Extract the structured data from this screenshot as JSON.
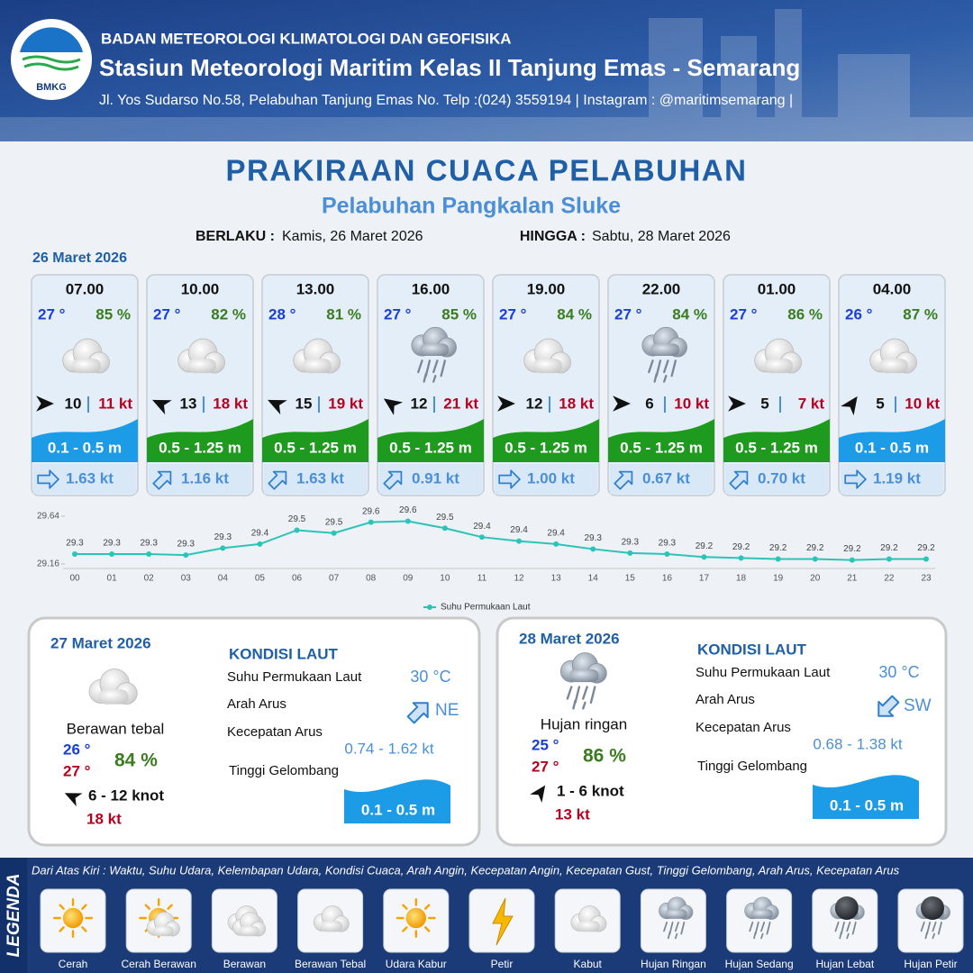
{
  "header": {
    "logo": "BMKG",
    "agency": "BADAN METEOROLOGI KLIMATOLOGI DAN GEOFISIKA",
    "station": "Stasiun Meteorologi Maritim Kelas II Tanjung Emas - Semarang",
    "address": "Jl. Yos Sudarso No.58, Pelabuhan Tanjung Emas No. Telp :(024) 3559194 | Instagram : @maritimsemarang |"
  },
  "title": "PRAKIRAAN CUACA PELABUHAN",
  "subtitle": "Pelabuhan Pangkalan Sluke",
  "validity": {
    "from_label": "BERLAKU :",
    "from": "Kamis, 26 Maret 2026",
    "to_label": "HINGGA :",
    "to": "Sabtu, 28 Maret 2026"
  },
  "today": {
    "date": "26 Maret 2026",
    "slots": [
      {
        "time": "07.00",
        "temp": "27 °",
        "humidity": "85 %",
        "wind": "10",
        "gust": "11 kt",
        "wave": "0.1 - 0.5 m",
        "wave_color": "#1c9be6",
        "current": "1.63 kt"
      },
      {
        "time": "10.00",
        "temp": "27 °",
        "humidity": "82 %",
        "wind": "13",
        "gust": "18 kt",
        "wave": "0.5 - 1.25 m",
        "wave_color": "#1e9a1e",
        "current": "1.16 kt"
      },
      {
        "time": "13.00",
        "temp": "28 °",
        "humidity": "81 %",
        "wind": "15",
        "gust": "19 kt",
        "wave": "0.5 - 1.25 m",
        "wave_color": "#1e9a1e",
        "current": "1.63 kt"
      },
      {
        "time": "16.00",
        "temp": "27 °",
        "humidity": "85 %",
        "wind": "12",
        "gust": "21 kt",
        "wave": "0.5 - 1.25 m",
        "wave_color": "#1e9a1e",
        "current": "0.91 kt"
      },
      {
        "time": "19.00",
        "temp": "27 °",
        "humidity": "84 %",
        "wind": "12",
        "gust": "18 kt",
        "wave": "0.5 - 1.25 m",
        "wave_color": "#1e9a1e",
        "current": "1.00 kt"
      },
      {
        "time": "22.00",
        "temp": "27 °",
        "humidity": "84 %",
        "wind": "6",
        "gust": "10 kt",
        "wave": "0.5 - 1.25 m",
        "wave_color": "#1e9a1e",
        "current": "0.67 kt"
      },
      {
        "time": "01.00",
        "temp": "27 °",
        "humidity": "86 %",
        "wind": "5",
        "gust": "7 kt",
        "wave": "0.5 - 1.25 m",
        "wave_color": "#1e9a1e",
        "current": "0.70 kt"
      },
      {
        "time": "04.00",
        "temp": "26 °",
        "humidity": "87 %",
        "wind": "5",
        "gust": "10 kt",
        "wave": "0.1 - 0.5 m",
        "wave_color": "#1c9be6",
        "current": "1.19 kt"
      }
    ]
  },
  "chart_data": {
    "type": "line",
    "categories": [
      "00",
      "01",
      "02",
      "03",
      "04",
      "05",
      "06",
      "07",
      "08",
      "09",
      "10",
      "11",
      "12",
      "13",
      "14",
      "15",
      "16",
      "17",
      "18",
      "19",
      "20",
      "21",
      "22",
      "23"
    ],
    "series": [
      {
        "name": "Suhu Permukaan Laut",
        "color": "#2bc4b8",
        "values": [
          29.26,
          29.26,
          29.26,
          29.25,
          29.32,
          29.36,
          29.5,
          29.47,
          29.58,
          29.59,
          29.52,
          29.43,
          29.39,
          29.36,
          29.31,
          29.27,
          29.26,
          29.23,
          29.22,
          29.21,
          29.21,
          29.2,
          29.21,
          29.21
        ],
        "value_labels": [
          "29.3",
          "29.3",
          "29.3",
          "29.3",
          "29.3",
          "29.4",
          "29.5",
          "29.5",
          "29.6",
          "29.6",
          "29.5",
          "29.4",
          "29.4",
          "29.4",
          "29.3",
          "29.3",
          "29.3",
          "29.2",
          "29.2",
          "29.2",
          "29.2",
          "29.2",
          "29.2",
          "29.2"
        ]
      }
    ],
    "ylim": [
      29.16,
      29.64
    ],
    "yticks": [
      29.16,
      29.64
    ],
    "legend": "bottom"
  },
  "days": [
    {
      "date": "27 Maret 2026",
      "condition": "Berawan tebal",
      "temp_min": "26 °",
      "temp_max": "27 °",
      "humidity": "84 %",
      "wind": "6  - 12 knot",
      "gust": "18 kt",
      "sea_heading": "KONDISI LAUT",
      "sst_label": "Suhu Permukaan Laut",
      "sst": "30 °C",
      "dir_label": "Arah Arus",
      "dir": "NE",
      "speed_label": "Kecepatan Arus",
      "speed": "0.74 - 1.62 kt",
      "wave_label": "Tinggi Gelombang",
      "wave": "0.1 - 0.5 m"
    },
    {
      "date": "28 Maret 2026",
      "condition": "Hujan ringan",
      "temp_min": "25 °",
      "temp_max": "27 °",
      "humidity": "86 %",
      "wind": "1  - 6 knot",
      "gust": "13 kt",
      "sea_heading": "KONDISI LAUT",
      "sst_label": "Suhu Permukaan Laut",
      "sst": "30 °C",
      "dir_label": "Arah Arus",
      "dir": "SW",
      "speed_label": "Kecepatan Arus",
      "speed": "0.68 - 1.38 kt",
      "wave_label": "Tinggi Gelombang",
      "wave": "0.1 - 0.5 m"
    }
  ],
  "legend": {
    "title": "LEGENDA",
    "description": "Dari Atas Kiri : Waktu, Suhu Udara, Kelembapan Udara, Kondisi Cuaca, Arah Angin, Kecepatan Angin, Kecepatan Gust, Tinggi Gelombang, Arah Arus, Kecepatan Arus",
    "items": [
      "Cerah",
      "Cerah Berawan",
      "Berawan",
      "Berawan Tebal",
      "Udara Kabur",
      "Petir",
      "Kabut",
      "Hujan Ringan",
      "Hujan Sedang",
      "Hujan Lebat",
      "Hujan Petir"
    ]
  }
}
